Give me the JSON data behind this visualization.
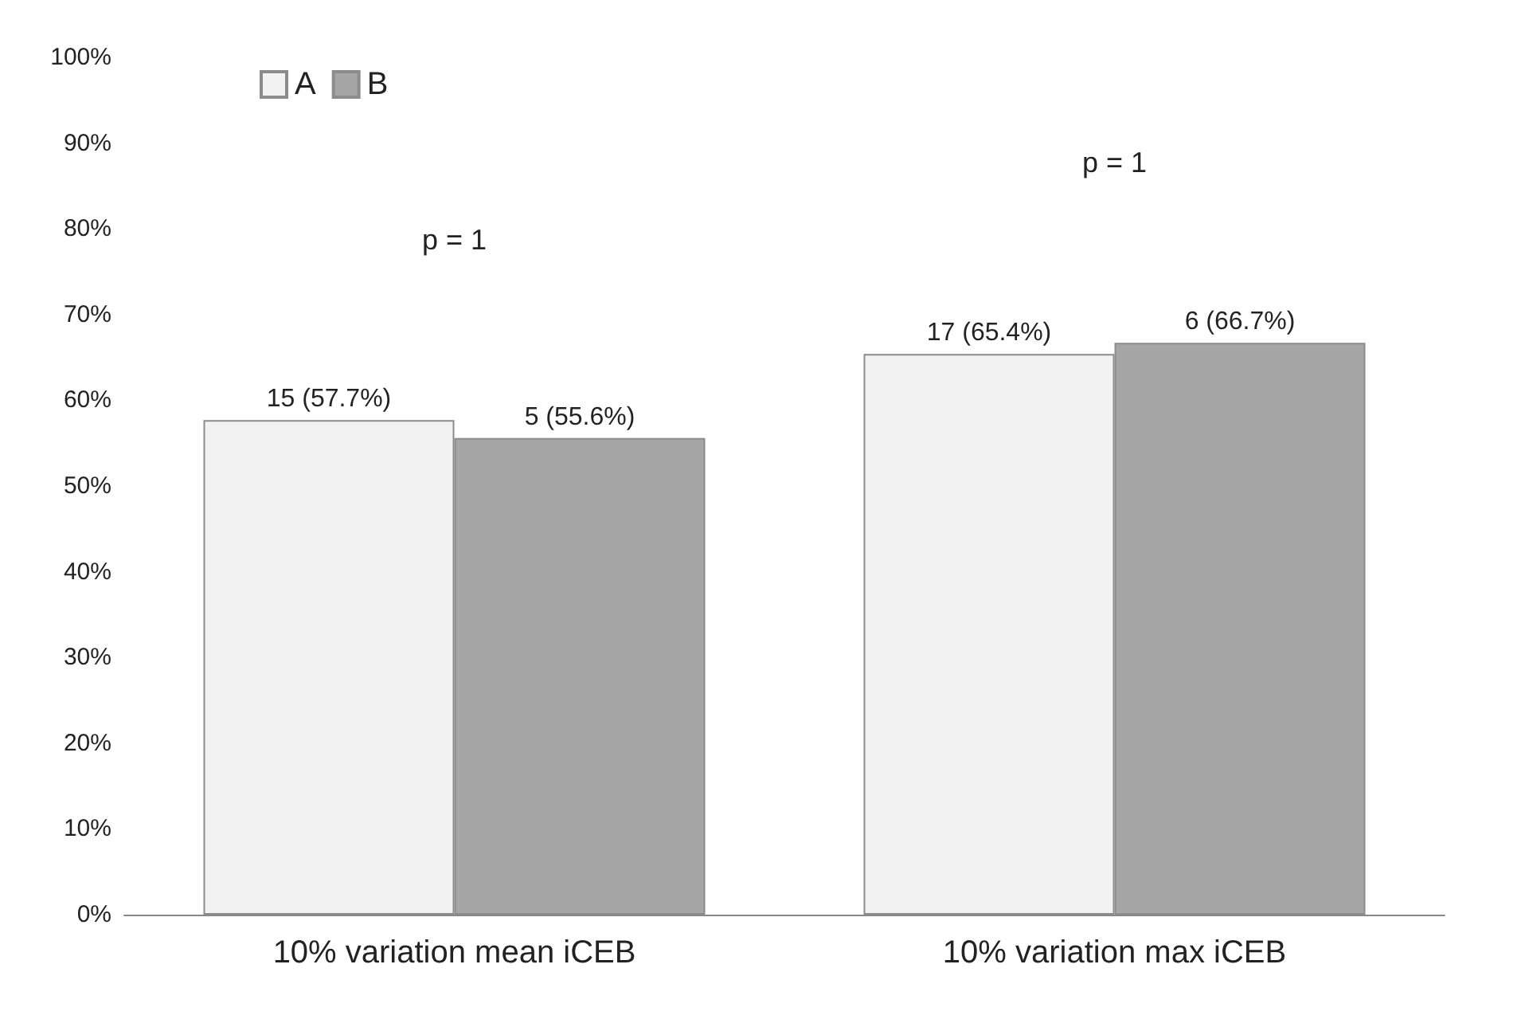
{
  "chart_data": {
    "type": "bar",
    "categories": [
      "10% variation mean iCEB",
      "10% variation max iCEB"
    ],
    "series": [
      {
        "name": "A",
        "color": "#f2f2f2",
        "values": [
          57.7,
          65.4
        ],
        "value_labels": [
          "15 (57.7%)",
          "17 (65.4%)"
        ]
      },
      {
        "name": "B",
        "color": "#a6a6a6",
        "values": [
          55.6,
          66.7
        ],
        "value_labels": [
          "5 (55.6%)",
          "6 (66.7%)"
        ]
      }
    ],
    "ylim": [
      0,
      100
    ],
    "yticks": [
      {
        "value": 0,
        "label": "0%"
      },
      {
        "value": 10,
        "label": "10%"
      },
      {
        "value": 20,
        "label": "20%"
      },
      {
        "value": 30,
        "label": "30%"
      },
      {
        "value": 40,
        "label": "40%"
      },
      {
        "value": 50,
        "label": "50%"
      },
      {
        "value": 60,
        "label": "60%"
      },
      {
        "value": 70,
        "label": "70%"
      },
      {
        "value": 80,
        "label": "80%"
      },
      {
        "value": 90,
        "label": "90%"
      },
      {
        "value": 100,
        "label": "100%"
      }
    ],
    "annotations": [
      "p = 1",
      "p = 1"
    ],
    "grid": false,
    "legend": "top left"
  }
}
